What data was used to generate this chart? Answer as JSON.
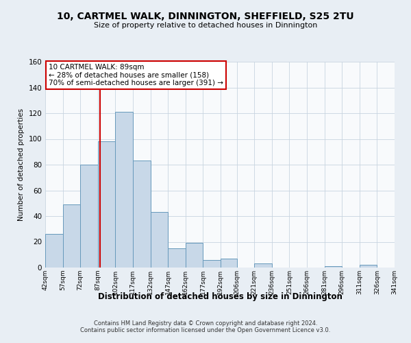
{
  "title": "10, CARTMEL WALK, DINNINGTON, SHEFFIELD, S25 2TU",
  "subtitle": "Size of property relative to detached houses in Dinnington",
  "xlabel": "Distribution of detached houses by size in Dinnington",
  "ylabel": "Number of detached properties",
  "bin_edges": [
    42,
    57,
    72,
    87,
    102,
    117,
    132,
    147,
    162,
    177,
    192,
    206,
    221,
    236,
    251,
    266,
    281,
    296,
    311,
    326,
    341
  ],
  "bar_heights": [
    26,
    49,
    80,
    98,
    121,
    83,
    43,
    15,
    19,
    6,
    7,
    0,
    3,
    0,
    0,
    0,
    1,
    0,
    2,
    0
  ],
  "bar_color": "#c8d8e8",
  "bar_edgecolor": "#6699bb",
  "vline_x": 89,
  "vline_color": "#cc0000",
  "annotation_text": "10 CARTMEL WALK: 89sqm\n← 28% of detached houses are smaller (158)\n70% of semi-detached houses are larger (391) →",
  "annotation_box_edgecolor": "#cc0000",
  "annotation_box_facecolor": "#ffffff",
  "ylim": [
    0,
    160
  ],
  "xlim": [
    42,
    341
  ],
  "tick_labels": [
    "42sqm",
    "57sqm",
    "72sqm",
    "87sqm",
    "102sqm",
    "117sqm",
    "132sqm",
    "147sqm",
    "162sqm",
    "177sqm",
    "192sqm",
    "206sqm",
    "221sqm",
    "236sqm",
    "251sqm",
    "266sqm",
    "281sqm",
    "296sqm",
    "311sqm",
    "326sqm",
    "341sqm"
  ],
  "footer1": "Contains HM Land Registry data © Crown copyright and database right 2024.",
  "footer2": "Contains public sector information licensed under the Open Government Licence v3.0.",
  "background_color": "#e8eef4",
  "plot_background": "#f8fafc",
  "grid_color": "#c8d4e0",
  "yticks": [
    0,
    20,
    40,
    60,
    80,
    100,
    120,
    140,
    160
  ]
}
